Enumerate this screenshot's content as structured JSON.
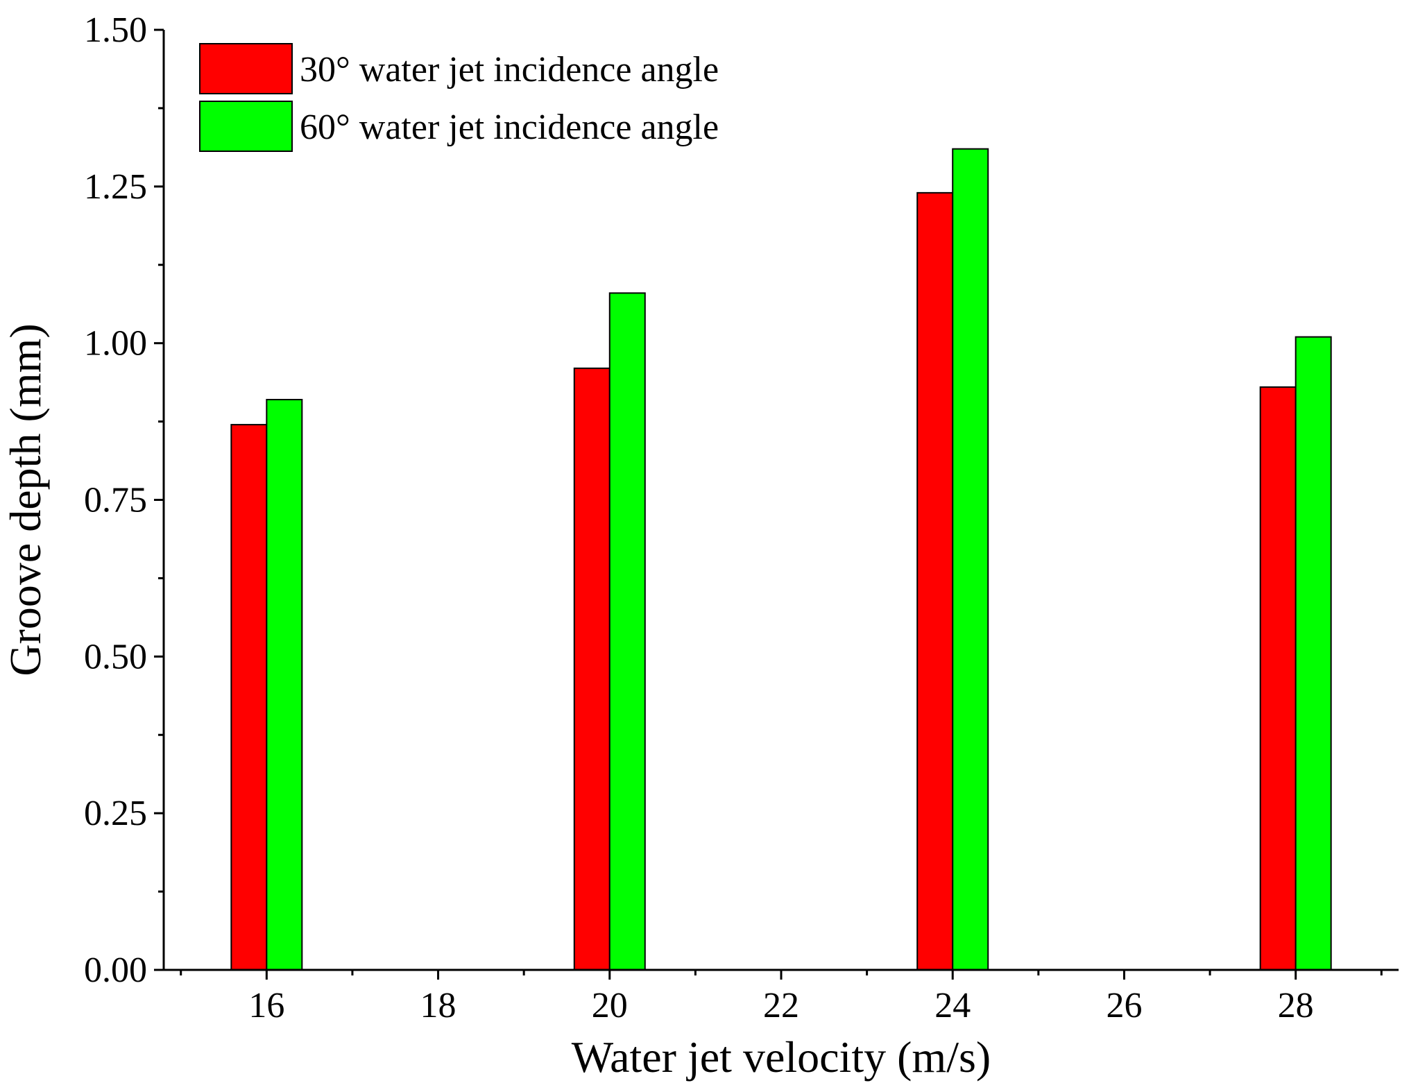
{
  "chart_data": {
    "type": "bar",
    "xlabel": "Water jet velocity (m/s)",
    "ylabel": "Groove depth (mm)",
    "xlim": [
      14.8,
      29.2
    ],
    "ylim": [
      0,
      1.5
    ],
    "x_ticks": [
      16,
      18,
      20,
      22,
      24,
      26,
      28
    ],
    "x_tick_labels": [
      "16",
      "18",
      "20",
      "22",
      "24",
      "26",
      "28"
    ],
    "y_ticks": [
      0,
      0.25,
      0.5,
      0.75,
      1.0,
      1.25,
      1.5
    ],
    "y_tick_labels": [
      "0.00",
      "0.25",
      "0.50",
      "0.75",
      "1.00",
      "1.25",
      "1.50"
    ],
    "categories": [
      16,
      20,
      24,
      28
    ],
    "series": [
      {
        "name": "30° water jet incidence angle",
        "color": "#ff0000",
        "values": [
          0.87,
          0.96,
          1.24,
          0.93
        ]
      },
      {
        "name": "60° water jet incidence angle",
        "color": "#00ff00",
        "values": [
          0.91,
          1.08,
          1.31,
          1.01
        ]
      }
    ],
    "legend_position": "top-left",
    "grid": false
  }
}
